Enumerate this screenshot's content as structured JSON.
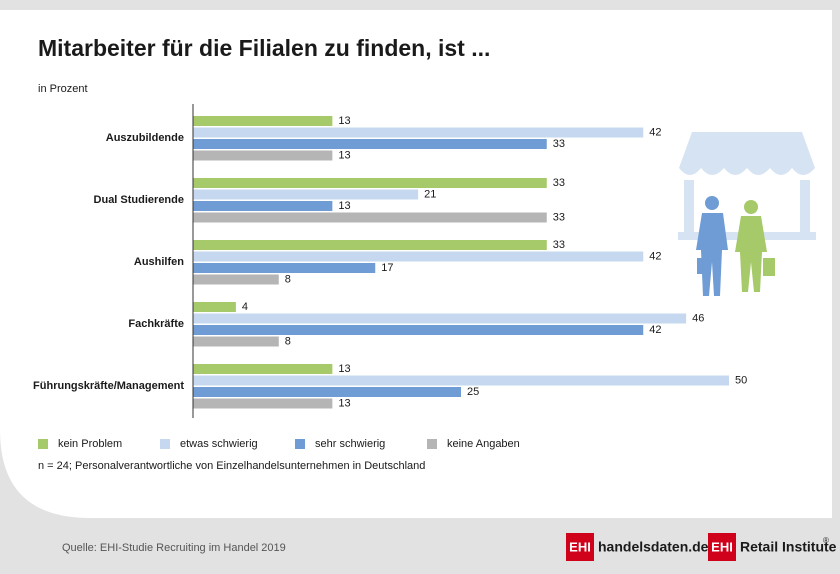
{
  "chart_data": {
    "type": "bar",
    "orientation": "horizontal",
    "title": "Mitarbeiter für die Filialen zu finden, ist ...",
    "subtitle": "in Prozent",
    "categories": [
      "Auszubildende",
      "Dual Studierende",
      "Aushilfen",
      "Fachkräfte",
      "Führungskräfte/Management"
    ],
    "series": [
      {
        "name": "kein Problem",
        "color": "#a6c969",
        "values": [
          13,
          33,
          33,
          4,
          13
        ]
      },
      {
        "name": "etwas schwierig",
        "color": "#c6d8ef",
        "values": [
          42,
          21,
          42,
          46,
          50
        ]
      },
      {
        "name": "sehr schwierig",
        "color": "#6f9cd4",
        "values": [
          33,
          13,
          17,
          42,
          25
        ]
      },
      {
        "name": "keine Angaben",
        "color": "#b5b5b5",
        "values": [
          13,
          33,
          8,
          8,
          13
        ]
      }
    ],
    "xlim": [
      0,
      50
    ],
    "note": "n = 24; Personalverantwortliche von Einzelhandelsunternehmen in Deutschland"
  },
  "footer": {
    "source": "Quelle: EHI-Studie Recruiting im Handel 2019",
    "logo1": {
      "mark": "EHI",
      "text": "handelsdaten.de"
    },
    "logo2": {
      "mark": "EHI",
      "text": "Retail Institute",
      "sup": "®"
    }
  }
}
